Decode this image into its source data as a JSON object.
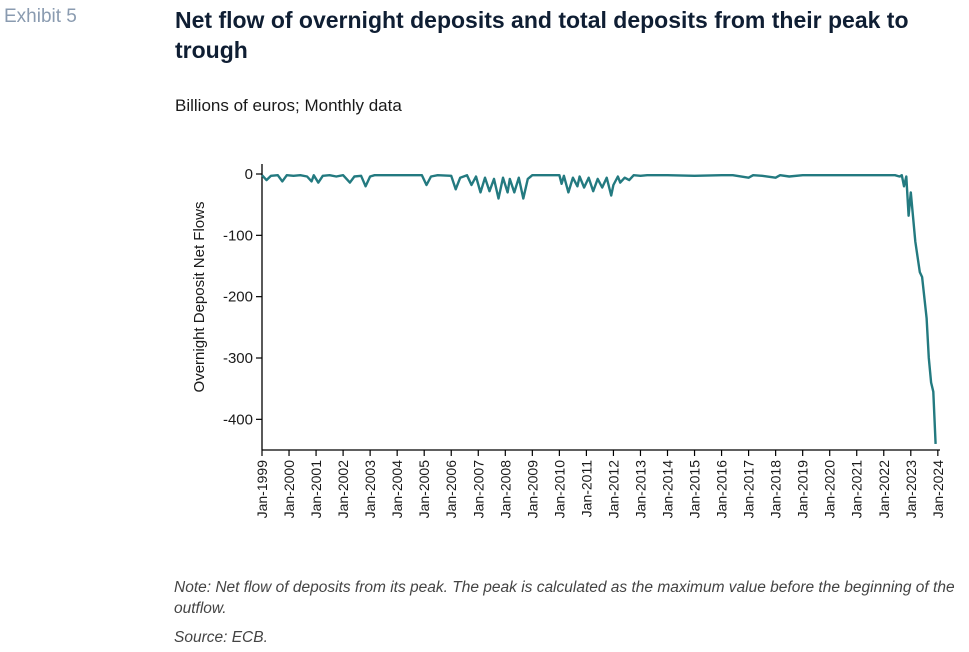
{
  "header": {
    "exhibit": "Exhibit 5",
    "title": "Net flow of overnight deposits and total deposits from their peak to trough",
    "subtitle": "Billions of euros; Monthly data"
  },
  "footer": {
    "note": "Note: Net flow of deposits from its peak. The peak is calculated as the maximum value before the beginning of the outflow.",
    "source": "Source: ECB."
  },
  "colors": {
    "line": "#237a80",
    "axis": "#000000"
  },
  "chart_data": {
    "type": "line",
    "title": "",
    "xlabel": "",
    "ylabel": "Overnight Deposit Net Flows",
    "ylim": [
      -450,
      0
    ],
    "yticks": [
      0,
      -100,
      -200,
      -300,
      -400
    ],
    "xlim": [
      1999.0,
      2024.08
    ],
    "xticks": [
      "Jan-1999",
      "Jan-2000",
      "Jan-2001",
      "Jan-2002",
      "Jan-2003",
      "Jan-2004",
      "Jan-2005",
      "Jan-2006",
      "Jan-2007",
      "Jan-2008",
      "Jan-2009",
      "Jan-2010",
      "Jan-2011",
      "Jan-2012",
      "Jan-2013",
      "Jan-2014",
      "Jan-2015",
      "Jan-2016",
      "Jan-2017",
      "Jan-2018",
      "Jan-2019",
      "Jan-2020",
      "Jan-2021",
      "Jan-2022",
      "Jan-2023",
      "Jan-2024"
    ],
    "grid": false,
    "series": [
      {
        "name": "",
        "points": [
          [
            "Jan-1999",
            -2
          ],
          [
            "Mar-1999",
            -10
          ],
          [
            "May-1999",
            -3
          ],
          [
            "Aug-1999",
            -2
          ],
          [
            "Oct-1999",
            -12
          ],
          [
            "Dec-1999",
            -2
          ],
          [
            "Mar-2000",
            -3
          ],
          [
            "Jun-2000",
            -2
          ],
          [
            "Sep-2000",
            -4
          ],
          [
            "Nov-2000",
            -12
          ],
          [
            "Dec-2000",
            -2
          ],
          [
            "Feb-2001",
            -14
          ],
          [
            "Apr-2001",
            -3
          ],
          [
            "Jul-2001",
            -2
          ],
          [
            "Oct-2001",
            -4
          ],
          [
            "Jan-2002",
            -2
          ],
          [
            "Apr-2002",
            -14
          ],
          [
            "Jun-2002",
            -4
          ],
          [
            "Sep-2002",
            -3
          ],
          [
            "Nov-2002",
            -20
          ],
          [
            "Jan-2003",
            -4
          ],
          [
            "Mar-2003",
            -2
          ],
          [
            "Jun-2003",
            -2
          ],
          [
            "Jan-2004",
            -2
          ],
          [
            "Jun-2004",
            -2
          ],
          [
            "Dec-2004",
            -2
          ],
          [
            "Feb-2005",
            -18
          ],
          [
            "Apr-2005",
            -4
          ],
          [
            "Jul-2005",
            -2
          ],
          [
            "Jan-2006",
            -3
          ],
          [
            "Mar-2006",
            -25
          ],
          [
            "May-2006",
            -6
          ],
          [
            "Aug-2006",
            -2
          ],
          [
            "Oct-2006",
            -18
          ],
          [
            "Dec-2006",
            -4
          ],
          [
            "Feb-2007",
            -30
          ],
          [
            "Apr-2007",
            -6
          ],
          [
            "Jun-2007",
            -28
          ],
          [
            "Aug-2007",
            -8
          ],
          [
            "Oct-2007",
            -40
          ],
          [
            "Dec-2007",
            -6
          ],
          [
            "Feb-2008",
            -30
          ],
          [
            "Mar-2008",
            -8
          ],
          [
            "May-2008",
            -30
          ],
          [
            "Jul-2008",
            -6
          ],
          [
            "Sep-2008",
            -40
          ],
          [
            "Nov-2008",
            -8
          ],
          [
            "Jan-2009",
            -2
          ],
          [
            "Mar-2009",
            -2
          ],
          [
            "Jan-2010",
            -2
          ],
          [
            "Feb-2010",
            -16
          ],
          [
            "Mar-2010",
            -3
          ],
          [
            "May-2010",
            -30
          ],
          [
            "Jul-2010",
            -6
          ],
          [
            "Sep-2010",
            -20
          ],
          [
            "Oct-2010",
            -4
          ],
          [
            "Dec-2010",
            -22
          ],
          [
            "Feb-2011",
            -6
          ],
          [
            "Apr-2011",
            -28
          ],
          [
            "Jun-2011",
            -8
          ],
          [
            "Aug-2011",
            -22
          ],
          [
            "Oct-2011",
            -6
          ],
          [
            "Dec-2011",
            -35
          ],
          [
            "Jan-2012",
            -18
          ],
          [
            "Mar-2012",
            -4
          ],
          [
            "Apr-2012",
            -14
          ],
          [
            "Jun-2012",
            -6
          ],
          [
            "Aug-2012",
            -10
          ],
          [
            "Oct-2012",
            -2
          ],
          [
            "Jan-2013",
            -3
          ],
          [
            "Apr-2013",
            -2
          ],
          [
            "Jan-2014",
            -2
          ],
          [
            "Jan-2015",
            -3
          ],
          [
            "Jan-2016",
            -2
          ],
          [
            "Jun-2016",
            -2
          ],
          [
            "Jan-2017",
            -6
          ],
          [
            "Mar-2017",
            -2
          ],
          [
            "Jul-2017",
            -3
          ],
          [
            "Jan-2018",
            -6
          ],
          [
            "Mar-2018",
            -2
          ],
          [
            "Jul-2018",
            -4
          ],
          [
            "Jan-2019",
            -2
          ],
          [
            "Jan-2020",
            -2
          ],
          [
            "Jan-2021",
            -2
          ],
          [
            "Jan-2022",
            -2
          ],
          [
            "Jun-2022",
            -2
          ],
          [
            "Aug-2022",
            -4
          ],
          [
            "Sep-2022",
            -2
          ],
          [
            "Oct-2022",
            -20
          ],
          [
            "Nov-2022",
            -4
          ],
          [
            "Dec-2022",
            -68
          ],
          [
            "Jan-2023",
            -30
          ],
          [
            "Mar-2023",
            -110
          ],
          [
            "May-2023",
            -160
          ],
          [
            "Jun-2023",
            -168
          ],
          [
            "Aug-2023",
            -235
          ],
          [
            "Sep-2023",
            -300
          ],
          [
            "Oct-2023",
            -340
          ],
          [
            "Nov-2023",
            -355
          ],
          [
            "Dec-2023",
            -440
          ]
        ]
      }
    ]
  }
}
